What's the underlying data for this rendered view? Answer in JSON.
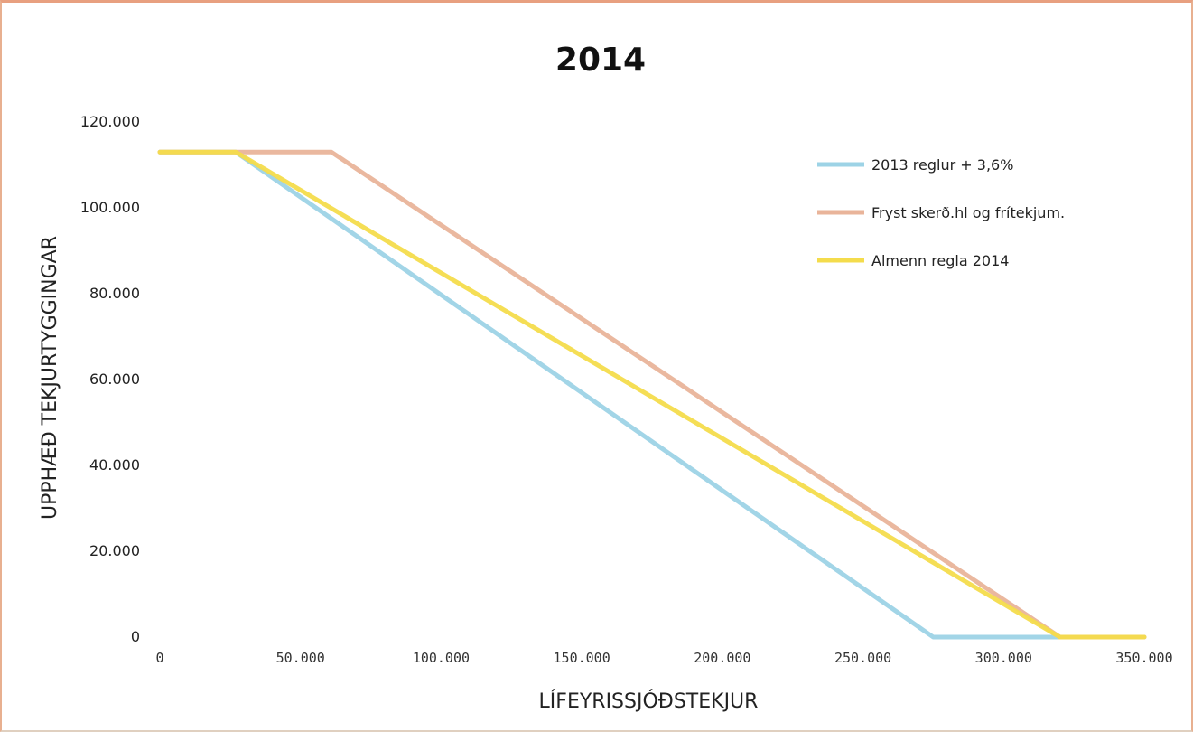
{
  "chart_data": {
    "type": "line",
    "title": "2014",
    "xlabel": "LÍFEYRISSJÓÐSTEKJUR",
    "ylabel": "UPPHÆÐ TEKJURTYGGINGAR",
    "xlim": [
      0,
      350000
    ],
    "ylim": [
      0,
      120000
    ],
    "x_ticks": [
      "0",
      "50.000",
      "100.000",
      "150.000",
      "200.000",
      "250.000",
      "300.000",
      "350.000"
    ],
    "x_tick_values": [
      0,
      50000,
      100000,
      150000,
      200000,
      250000,
      300000,
      350000
    ],
    "y_ticks": [
      "0",
      "20.000",
      "40.000",
      "60.000",
      "80.000",
      "100.000",
      "120.000"
    ],
    "y_tick_values": [
      0,
      20000,
      40000,
      60000,
      80000,
      100000,
      120000
    ],
    "grid": false,
    "legend_position": "top-right",
    "series": [
      {
        "name": "2013 reglur + 3,6%",
        "color": "#9dd3e6",
        "x": [
          0,
          27000,
          275000,
          350000
        ],
        "y": [
          113000,
          113000,
          0,
          0
        ]
      },
      {
        "name": "Fryst skerð.hl og frítekjum.",
        "color": "#e9b49a",
        "x": [
          0,
          61000,
          320000,
          350000
        ],
        "y": [
          113000,
          113000,
          0,
          0
        ]
      },
      {
        "name": "Almenn regla 2014",
        "color": "#f4dc4c",
        "x": [
          0,
          27000,
          320000,
          350000
        ],
        "y": [
          113000,
          113000,
          0,
          0
        ]
      }
    ]
  }
}
